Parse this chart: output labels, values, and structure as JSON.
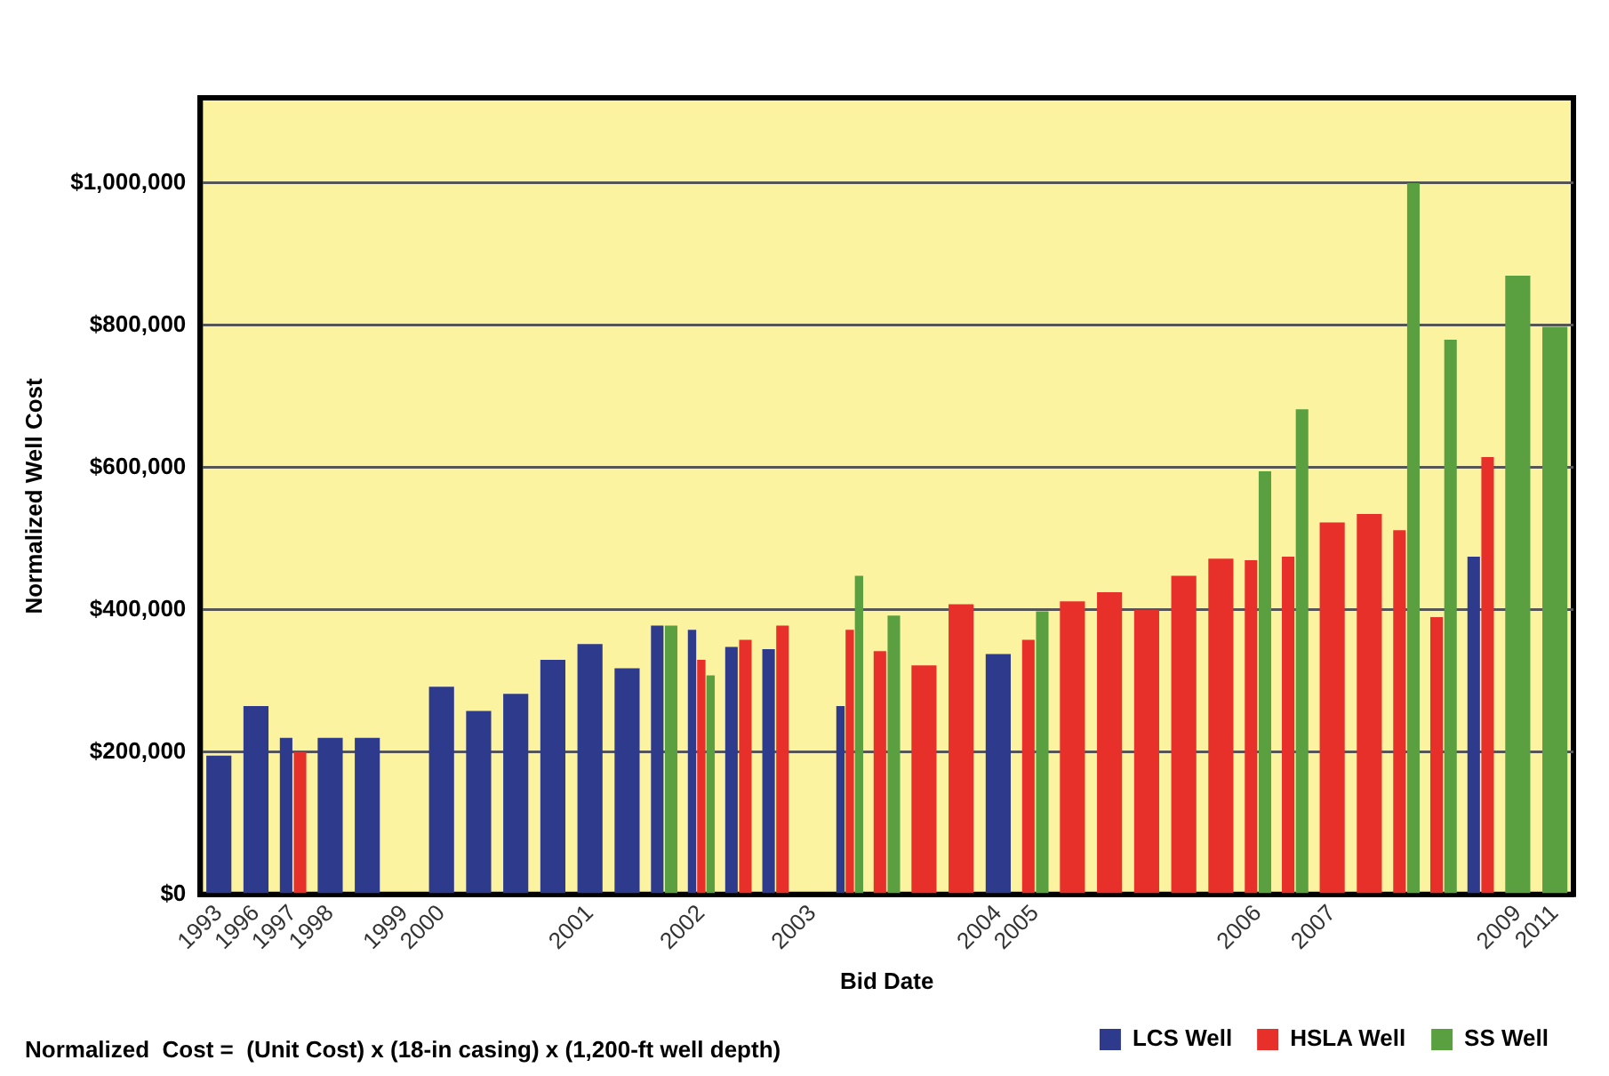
{
  "chart_data": {
    "type": "bar",
    "xlabel": "Bid Date",
    "ylabel": "Normalized Well Cost",
    "categories": [
      "1993",
      "1996",
      "1997",
      "1998",
      null,
      "1999",
      "2000",
      null,
      null,
      null,
      "2001",
      null,
      null,
      "2002",
      null,
      null,
      "2003",
      null,
      null,
      null,
      null,
      "2004",
      "2005",
      null,
      null,
      null,
      null,
      null,
      "2006",
      null,
      "2007",
      null,
      null,
      null,
      null,
      "2009",
      "2011"
    ],
    "series": [
      {
        "name": "LCS Well",
        "color": "#2e3a8c",
        "values": [
          195000,
          265000,
          220000,
          220000,
          220000,
          null,
          292000,
          258000,
          282000,
          330000,
          352000,
          318000,
          378000,
          372000,
          348000,
          345000,
          null,
          265000,
          null,
          null,
          null,
          338000,
          null,
          null,
          null,
          null,
          null,
          null,
          null,
          null,
          null,
          null,
          null,
          null,
          475000,
          null,
          null
        ]
      },
      {
        "name": "HSLA Well",
        "color": "#e8302a",
        "values": [
          null,
          null,
          200000,
          null,
          null,
          null,
          null,
          null,
          null,
          null,
          null,
          null,
          null,
          330000,
          358000,
          378000,
          null,
          372000,
          342000,
          322000,
          408000,
          null,
          358000,
          412000,
          425000,
          400000,
          448000,
          472000,
          470000,
          475000,
          523000,
          535000,
          512000,
          390000,
          615000,
          null,
          null
        ]
      },
      {
        "name": "SS Well",
        "color": "#5aa040",
        "values": [
          null,
          null,
          null,
          null,
          null,
          null,
          null,
          null,
          null,
          null,
          null,
          null,
          378000,
          308000,
          null,
          null,
          null,
          448000,
          392000,
          null,
          null,
          null,
          398000,
          null,
          null,
          null,
          null,
          null,
          595000,
          682000,
          null,
          null,
          1000000,
          780000,
          null,
          870000,
          798000
        ]
      }
    ],
    "ylim": [
      0,
      1120000
    ],
    "yticks": [
      {
        "value": 0,
        "label": "$0"
      },
      {
        "value": 200000,
        "label": "$200,000"
      },
      {
        "value": 400000,
        "label": "$400,000"
      },
      {
        "value": 600000,
        "label": "$600,000"
      },
      {
        "value": 800000,
        "label": "$800,000"
      },
      {
        "value": 1000000,
        "label": "$1,000,000"
      }
    ],
    "grid": "y",
    "legend": "bottom right",
    "annotations": [
      "Normalized  Cost =  (Unit Cost) x (18-in casing) x (1,200-ft well depth)"
    ]
  }
}
